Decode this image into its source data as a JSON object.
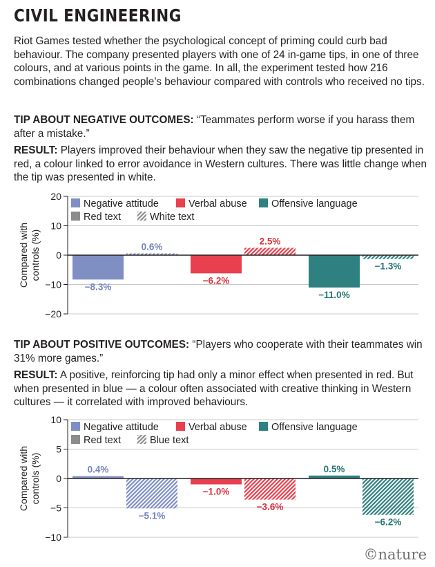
{
  "header": {
    "title": "CIVIL ENGINEERING",
    "intro": "Riot Games tested whether the psychological concept of priming could curb bad behaviour. The company presented players with one of 24 in-game tips, in one of three colours, and at various points in the game. In all, the experiment tested how 216 combinations changed people’s behaviour compared with controls who received no tips."
  },
  "section1": {
    "tip_label": "TIP ABOUT NEGATIVE OUTCOMES:",
    "tip_text": " “Teammates perform worse if you harass them after a mistake.”",
    "result_label": "RESULT:",
    "result_text": " Players improved their behaviour when they saw the negative tip presented in red, a colour linked to error avoidance in Western cultures. There was little change when the tip was presented in white."
  },
  "section2": {
    "tip_label": "TIP ABOUT POSITIVE OUTCOMES:",
    "tip_text": " “Players who cooperate with their teammates win 31% more games.”",
    "result_label": "RESULT:",
    "result_text": " A positive, reinforcing tip had only a minor effect when presented in red. But when presented in blue — a colour often associated with creative thinking in Western cultures — it correlated with improved behaviours."
  },
  "logo": "©nature",
  "colors": {
    "negative_attitude": "#7f8fc4",
    "negative_attitude_label": "#7383bd",
    "verbal_abuse": "#e8404e",
    "verbal_abuse_label": "#d9303e",
    "offensive_language": "#2f8080",
    "offensive_language_label": "#287373",
    "neutral": "#8c8c8c"
  },
  "chart_data": [
    {
      "type": "bar",
      "ylabel": "Compared with controls (%)",
      "ylim": [
        -20,
        20
      ],
      "yticks": [
        20,
        10,
        0,
        -10,
        -20
      ],
      "tick_labels": [
        "20",
        "10",
        "0",
        "−10",
        "−20"
      ],
      "legend_categories": [
        "Negative attitude",
        "Verbal abuse",
        "Offensive language"
      ],
      "legend_styles": [
        "Red text",
        "White text"
      ],
      "grid": true,
      "bars": [
        {
          "category": "Negative attitude",
          "style": "Red text",
          "value": -8.3,
          "label": "−8.3%"
        },
        {
          "category": "Negative attitude",
          "style": "White text",
          "value": 0.6,
          "label": "0.6%"
        },
        {
          "category": "Verbal abuse",
          "style": "Red text",
          "value": -6.2,
          "label": "−6.2%"
        },
        {
          "category": "Verbal abuse",
          "style": "White text",
          "value": 2.5,
          "label": "2.5%"
        },
        {
          "category": "Offensive language",
          "style": "Red text",
          "value": -11.0,
          "label": "−11.0%"
        },
        {
          "category": "Offensive language",
          "style": "White text",
          "value": -1.3,
          "label": "−1.3%"
        }
      ]
    },
    {
      "type": "bar",
      "ylabel": "Compared with controls (%)",
      "ylim": [
        -10,
        10
      ],
      "yticks": [
        10,
        5,
        0,
        -5,
        -10
      ],
      "tick_labels": [
        "10",
        "5",
        "0",
        "−5",
        "−10"
      ],
      "legend_categories": [
        "Negative attitude",
        "Verbal abuse",
        "Offensive language"
      ],
      "legend_styles": [
        "Red text",
        "Blue text"
      ],
      "grid": true,
      "bars": [
        {
          "category": "Negative attitude",
          "style": "Red text",
          "value": 0.4,
          "label": "0.4%"
        },
        {
          "category": "Negative attitude",
          "style": "Blue text",
          "value": -5.1,
          "label": "−5.1%"
        },
        {
          "category": "Verbal abuse",
          "style": "Red text",
          "value": -1.0,
          "label": "−1.0%"
        },
        {
          "category": "Verbal abuse",
          "style": "Blue text",
          "value": -3.6,
          "label": "−3.6%"
        },
        {
          "category": "Offensive language",
          "style": "Red text",
          "value": 0.5,
          "label": "0.5%"
        },
        {
          "category": "Offensive language",
          "style": "Blue text",
          "value": -6.2,
          "label": "−6.2%"
        }
      ]
    }
  ]
}
